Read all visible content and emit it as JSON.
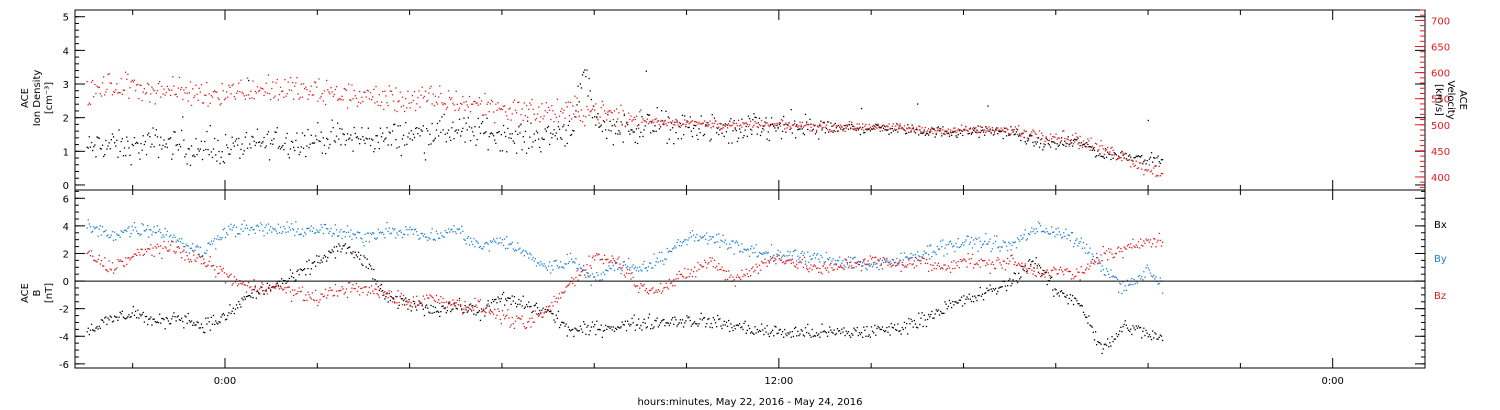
{
  "colors": {
    "black": "#000000",
    "red": "#e31a1c",
    "blue": "#1f7fd6",
    "axis": "#000000"
  },
  "xaxis": {
    "label": "hours:minutes, May 22, 2016 - May 24, 2016",
    "ticks": [
      {
        "hour": 0,
        "label": "0:00"
      },
      {
        "hour": 12,
        "label": "12:00"
      },
      {
        "hour": 24,
        "label": "0:00"
      }
    ],
    "range_hours": [
      -3.25,
      26.0
    ],
    "minor_step_hours": 2
  },
  "top_panel": {
    "left_label_lines": [
      "ACE",
      "Ion Density",
      "[cm⁻³]"
    ],
    "right_label_lines": [
      "ACE",
      "Velocity",
      "[km/s]"
    ]
  },
  "bottom_panel": {
    "left_label_lines": [
      "ACE",
      "B",
      "[nT]"
    ],
    "legend": [
      {
        "label": "Bx",
        "color": "#000000"
      },
      {
        "label": "By",
        "color": "#1f7fd6"
      },
      {
        "label": "Bz",
        "color": "#e31a1c"
      }
    ]
  },
  "chart_data": [
    {
      "type": "scatter",
      "panel": "top",
      "ylabel": "ACE Ion Density [cm-3]",
      "ylim": [
        -0.15,
        5.2
      ],
      "yticks": [
        0,
        1,
        2,
        3,
        4,
        5
      ],
      "y2label": "ACE Velocity [km/s]",
      "y2lim": [
        375,
        720
      ],
      "y2ticks": [
        400,
        450,
        500,
        550,
        600,
        650,
        700
      ],
      "series": [
        {
          "name": "Ion Density",
          "axis": "left",
          "color": "#000000",
          "x_hours": [
            -3.0,
            -2.5,
            -2.0,
            -1.5,
            -1.0,
            -0.5,
            0.0,
            0.5,
            1.0,
            1.5,
            2.0,
            2.5,
            3.0,
            3.5,
            4.0,
            4.5,
            5.0,
            5.5,
            6.0,
            6.5,
            7.0,
            7.5,
            7.8,
            8.0,
            8.5,
            9.0,
            9.5,
            10.0,
            10.5,
            11.0,
            11.5,
            12.0,
            12.5,
            13.0,
            13.5,
            14.0,
            14.5,
            15.0,
            15.5,
            16.0,
            16.5,
            17.0,
            17.5,
            18.0,
            18.5,
            19.0,
            19.5,
            20.0,
            20.3
          ],
          "y": [
            1.1,
            1.2,
            1.1,
            1.3,
            1.2,
            1.0,
            1.1,
            1.2,
            1.3,
            1.3,
            1.4,
            1.4,
            1.4,
            1.4,
            1.5,
            1.6,
            1.6,
            1.6,
            1.5,
            1.4,
            1.5,
            1.7,
            3.5,
            1.9,
            1.7,
            1.7,
            1.8,
            1.7,
            1.7,
            1.6,
            1.7,
            1.7,
            1.7,
            1.7,
            1.7,
            1.7,
            1.7,
            1.6,
            1.6,
            1.6,
            1.6,
            1.6,
            1.3,
            1.2,
            1.3,
            0.9,
            0.9,
            0.8,
            0.7
          ]
        },
        {
          "name": "Velocity",
          "axis": "right",
          "color": "#e31a1c",
          "x_hours": [
            -3.0,
            -2.5,
            -2.0,
            -1.5,
            -1.0,
            -0.5,
            0.0,
            0.5,
            1.0,
            1.5,
            2.0,
            2.5,
            3.0,
            3.5,
            4.0,
            4.5,
            5.0,
            5.5,
            6.0,
            6.5,
            7.0,
            7.5,
            8.0,
            8.5,
            9.0,
            9.5,
            10.0,
            10.5,
            11.0,
            11.5,
            12.0,
            12.5,
            13.0,
            13.5,
            14.0,
            14.5,
            15.0,
            15.5,
            16.0,
            16.5,
            17.0,
            17.5,
            18.0,
            18.5,
            19.0,
            19.5,
            20.0,
            20.3
          ],
          "y": [
            560,
            575,
            575,
            568,
            565,
            560,
            565,
            568,
            570,
            568,
            562,
            560,
            555,
            552,
            548,
            550,
            545,
            540,
            532,
            528,
            525,
            525,
            530,
            515,
            510,
            508,
            505,
            502,
            500,
            500,
            500,
            500,
            497,
            498,
            498,
            495,
            492,
            490,
            492,
            490,
            490,
            485,
            480,
            470,
            455,
            440,
            415,
            410
          ]
        }
      ]
    },
    {
      "type": "scatter",
      "panel": "bottom",
      "ylabel": "ACE B [nT]",
      "ylim": [
        -6.3,
        6.6
      ],
      "yticks": [
        -6,
        -4,
        -2,
        0,
        2,
        4,
        6
      ],
      "series": [
        {
          "name": "Bx",
          "color": "#000000",
          "x_hours": [
            -3.0,
            -2.5,
            -2.0,
            -1.5,
            -1.0,
            -0.5,
            0.0,
            0.5,
            1.0,
            1.5,
            2.0,
            2.5,
            3.0,
            3.5,
            4.0,
            4.5,
            5.0,
            5.5,
            6.0,
            6.5,
            7.0,
            7.5,
            8.0,
            8.5,
            9.0,
            9.5,
            10.0,
            10.5,
            11.0,
            11.5,
            12.0,
            12.5,
            13.0,
            13.5,
            14.0,
            14.5,
            15.0,
            15.5,
            16.0,
            16.5,
            17.0,
            17.5,
            18.0,
            18.5,
            19.0,
            19.5,
            20.0,
            20.3
          ],
          "y": [
            -3.5,
            -2.8,
            -2.2,
            -3.0,
            -2.5,
            -3.2,
            -2.6,
            -1.0,
            -0.4,
            0.3,
            1.5,
            2.5,
            1.6,
            -1.3,
            -1.6,
            -2.0,
            -1.8,
            -2.2,
            -1.2,
            -1.7,
            -2.2,
            -3.6,
            -3.4,
            -3.2,
            -3.0,
            -2.9,
            -2.8,
            -2.9,
            -3.2,
            -3.5,
            -3.7,
            -3.7,
            -3.7,
            -3.7,
            -3.6,
            -3.4,
            -2.9,
            -2.0,
            -1.4,
            -0.8,
            -0.1,
            1.6,
            -0.8,
            -1.4,
            -5.0,
            -3.2,
            -3.8,
            -4.2
          ]
        },
        {
          "name": "By",
          "color": "#1f7fd6",
          "x_hours": [
            -3.0,
            -2.5,
            -2.0,
            -1.5,
            -1.0,
            -0.5,
            0.0,
            0.5,
            1.0,
            1.5,
            2.0,
            2.5,
            3.0,
            3.5,
            4.0,
            4.5,
            5.0,
            5.5,
            6.0,
            6.5,
            7.0,
            7.5,
            8.0,
            8.5,
            9.0,
            9.5,
            10.0,
            10.5,
            11.0,
            11.5,
            12.0,
            12.5,
            13.0,
            13.5,
            14.0,
            14.5,
            15.0,
            15.5,
            16.0,
            16.5,
            17.0,
            17.5,
            18.0,
            18.5,
            19.0,
            19.5,
            20.0,
            20.3
          ],
          "y": [
            4.0,
            3.4,
            3.8,
            3.8,
            3.0,
            2.0,
            3.8,
            3.8,
            3.8,
            3.7,
            3.8,
            3.5,
            3.2,
            3.8,
            3.6,
            3.2,
            3.8,
            2.5,
            3.0,
            2.0,
            1.0,
            1.6,
            0.2,
            1.2,
            1.0,
            1.8,
            3.2,
            3.3,
            2.5,
            2.2,
            1.9,
            1.8,
            1.6,
            1.5,
            1.2,
            1.4,
            2.0,
            2.5,
            2.8,
            2.9,
            2.5,
            3.8,
            3.7,
            2.8,
            1.0,
            -0.5,
            0.8,
            -0.4
          ]
        },
        {
          "name": "Bz",
          "color": "#e31a1c",
          "x_hours": [
            -3.0,
            -2.5,
            -2.0,
            -1.5,
            -1.0,
            -0.5,
            0.0,
            0.5,
            1.0,
            1.5,
            2.0,
            2.5,
            3.0,
            3.5,
            4.0,
            4.5,
            5.0,
            5.5,
            6.0,
            6.5,
            7.0,
            7.5,
            8.0,
            8.5,
            9.0,
            9.5,
            10.0,
            10.5,
            11.0,
            11.5,
            12.0,
            12.5,
            13.0,
            13.5,
            14.0,
            14.5,
            15.0,
            15.5,
            16.0,
            16.5,
            17.0,
            17.5,
            18.0,
            18.5,
            19.0,
            19.5,
            20.0,
            20.3
          ],
          "y": [
            2.0,
            1.0,
            1.8,
            2.5,
            2.2,
            1.5,
            0.5,
            -0.5,
            -0.3,
            -0.8,
            -1.2,
            -0.5,
            -0.6,
            -0.9,
            -1.5,
            -1.2,
            -1.6,
            -1.8,
            -2.5,
            -3.2,
            -2.0,
            0.0,
            1.8,
            1.5,
            -0.5,
            -0.4,
            0.5,
            1.5,
            0.2,
            1.0,
            1.8,
            1.2,
            0.8,
            1.3,
            1.5,
            1.2,
            1.5,
            1.0,
            1.6,
            1.2,
            1.5,
            0.8,
            0.8,
            0.4,
            2.0,
            2.2,
            3.2,
            2.9
          ]
        }
      ]
    }
  ]
}
